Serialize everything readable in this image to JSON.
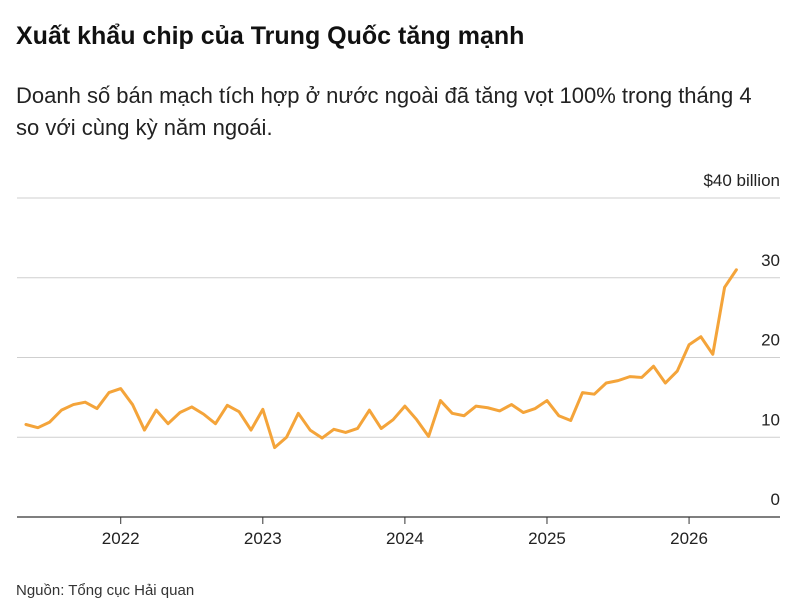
{
  "chart_data": {
    "type": "line",
    "title": "Xuất khẩu chip của Trung Quốc tăng mạnh",
    "subtitle": "Doanh số bán mạch tích hợp ở nước ngoài đã tăng vọt 100% trong tháng 4 so với cùng kỳ năm ngoái.",
    "source": "Nguồn: Tổng cục Hải quan",
    "color": "#f4a43a",
    "x": [
      2021.333,
      2021.417,
      2021.5,
      2021.583,
      2021.667,
      2021.75,
      2021.833,
      2021.917,
      2022,
      2022.083,
      2022.167,
      2022.25,
      2022.333,
      2022.417,
      2022.5,
      2022.583,
      2022.667,
      2022.75,
      2022.833,
      2022.917,
      2023,
      2023.083,
      2023.167,
      2023.25,
      2023.333,
      2023.417,
      2023.5,
      2023.583,
      2023.667,
      2023.75,
      2023.833,
      2023.917,
      2024,
      2024.083,
      2024.167,
      2024.25,
      2024.333,
      2024.417,
      2024.5,
      2024.583,
      2024.667,
      2024.75,
      2024.833,
      2024.917,
      2025,
      2025.083,
      2025.167,
      2025.25,
      2025.333,
      2025.417,
      2025.5,
      2025.583,
      2025.667,
      2025.75,
      2025.833,
      2025.917,
      2026,
      2026.083,
      2026.167,
      2026.25,
      2026.333
    ],
    "values": [
      11.6,
      11.2,
      11.9,
      13.4,
      14.1,
      14.4,
      13.6,
      15.6,
      16.1,
      14.1,
      10.9,
      13.4,
      11.7,
      13.1,
      13.8,
      12.9,
      11.7,
      14.0,
      13.2,
      10.9,
      13.5,
      8.7,
      10.0,
      13.0,
      10.9,
      9.9,
      11.0,
      10.6,
      11.1,
      13.4,
      11.1,
      12.2,
      13.9,
      12.2,
      10.1,
      14.6,
      13.0,
      12.7,
      13.9,
      13.7,
      13.3,
      14.1,
      13.1,
      13.6,
      14.6,
      12.7,
      12.1,
      15.6,
      15.4,
      16.8,
      17.1,
      17.6,
      17.5,
      18.9,
      16.8,
      18.3,
      21.6,
      22.6,
      20.4,
      28.8,
      31.0
    ],
    "xlim": [
      2021.27,
      2026.64
    ],
    "xticks": [
      2022,
      2023,
      2024,
      2025,
      2026
    ],
    "ylim": [
      0,
      40
    ],
    "yticks": [
      0,
      10,
      20,
      30,
      {
        "value": 40,
        "label": "$40 billion"
      }
    ],
    "grid": true
  }
}
